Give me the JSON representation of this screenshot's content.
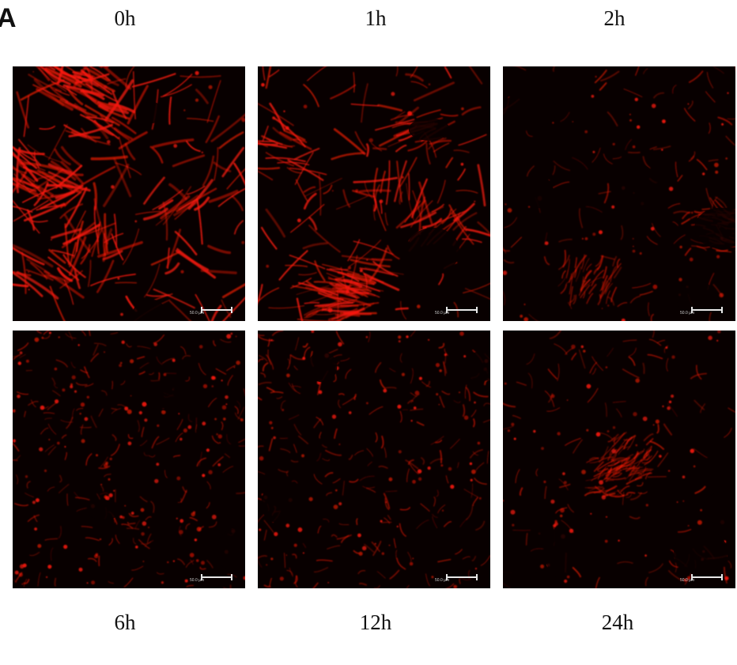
{
  "figure": {
    "panel_letter": "A",
    "top_labels": [
      "0h",
      "1h",
      "2h"
    ],
    "bottom_labels": [
      "6h",
      "12h",
      "24h"
    ],
    "scale_text": "50.0 µm",
    "stain_color": "#ff1a0a",
    "background_color": "#080000"
  }
}
